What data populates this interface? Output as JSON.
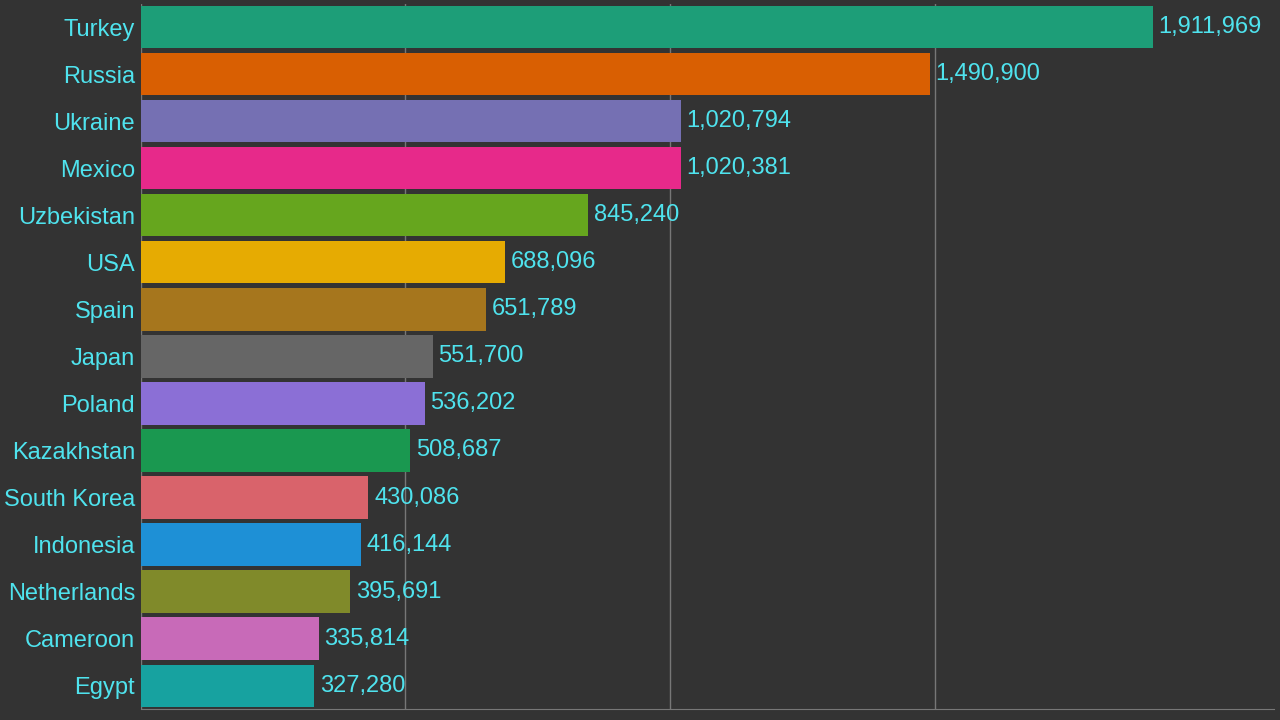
{
  "chart_data": {
    "type": "bar",
    "orientation": "horizontal",
    "categories": [
      "Turkey",
      "Russia",
      "Ukraine",
      "Mexico",
      "Uzbekistan",
      "USA",
      "Spain",
      "Japan",
      "Poland",
      "Kazakhstan",
      "South Korea",
      "Indonesia",
      "Netherlands",
      "Cameroon",
      "Egypt"
    ],
    "values": [
      1911969,
      1490900,
      1020794,
      1020381,
      845240,
      688096,
      651789,
      551700,
      536202,
      508687,
      430086,
      416144,
      395691,
      335814,
      327280
    ],
    "value_labels": [
      "1,911,969",
      "1,490,900",
      "1,020,794",
      "1,020,381",
      "845,240",
      "688,096",
      "651,789",
      "551,700",
      "536,202",
      "508,687",
      "430,086",
      "416,144",
      "395,691",
      "335,814",
      "327,280"
    ],
    "colors": [
      "#1d9e78",
      "#d95f02",
      "#7570b3",
      "#e7298a",
      "#66a61e",
      "#e6ab02",
      "#a6761d",
      "#666666",
      "#8b6fd6",
      "#1a9850",
      "#d9636b",
      "#1e90d6",
      "#808a2a",
      "#c86ab8",
      "#17a2a0"
    ],
    "xlim": [
      0,
      2140000
    ],
    "xticks": [
      0,
      500000,
      1000000,
      1500000
    ],
    "grid": true,
    "data_labels": true,
    "tick_labels": "y"
  }
}
